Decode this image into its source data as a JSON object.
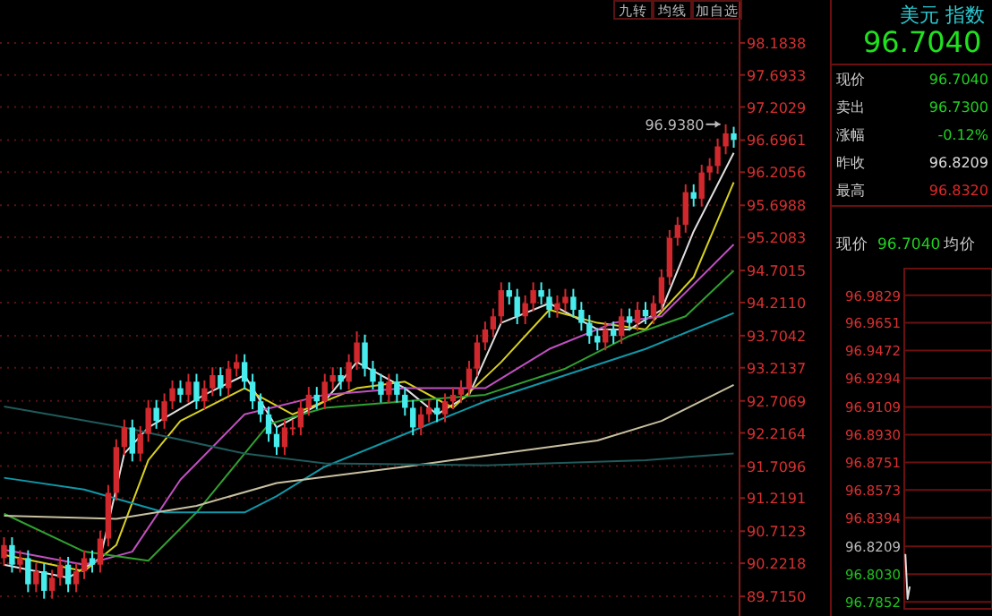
{
  "chart_data": [
    {
      "type": "candlestick",
      "categories": [
        null,
        null,
        null,
        null,
        null,
        null,
        null,
        null,
        null,
        null,
        null,
        null,
        null,
        null,
        null,
        null,
        null,
        null,
        null,
        null,
        null,
        null,
        null,
        null,
        null,
        null,
        null,
        null,
        null,
        null,
        null,
        null,
        null,
        null,
        null,
        null,
        null,
        null,
        null,
        null,
        null,
        null,
        null,
        null,
        null,
        null,
        null,
        null,
        null,
        null,
        null,
        null,
        null,
        null,
        null,
        null,
        null,
        null,
        null,
        null,
        null,
        null,
        null,
        null,
        null,
        null,
        null,
        null,
        null,
        null,
        null,
        null,
        null,
        null,
        null,
        null,
        null,
        null,
        null,
        null,
        null,
        null,
        null,
        null,
        null,
        null,
        null,
        null,
        null,
        null,
        null,
        null
      ],
      "ohlc": [
        [
          90.3,
          90.62,
          90.18,
          90.5
        ],
        [
          90.5,
          90.62,
          90.08,
          90.2
        ],
        [
          90.2,
          90.42,
          90.08,
          90.3
        ],
        [
          90.3,
          90.42,
          89.78,
          89.9
        ],
        [
          89.9,
          90.22,
          89.78,
          90.1
        ],
        [
          90.1,
          90.22,
          89.68,
          89.8
        ],
        [
          89.8,
          90.12,
          89.68,
          90.0
        ],
        [
          90.0,
          90.32,
          89.88,
          90.2
        ],
        [
          90.2,
          90.32,
          89.78,
          89.9
        ],
        [
          89.9,
          90.22,
          89.78,
          90.1
        ],
        [
          90.1,
          90.42,
          89.98,
          90.3
        ],
        [
          90.3,
          90.42,
          90.08,
          90.2
        ],
        [
          90.2,
          90.72,
          90.08,
          90.6
        ],
        [
          90.6,
          91.42,
          90.48,
          91.3
        ],
        [
          91.3,
          92.12,
          91.18,
          92.0
        ],
        [
          92.0,
          92.42,
          91.88,
          92.3
        ],
        [
          92.3,
          92.42,
          91.78,
          91.9
        ],
        [
          91.9,
          92.32,
          91.78,
          92.2
        ],
        [
          92.2,
          92.72,
          92.08,
          92.6
        ],
        [
          92.6,
          92.72,
          92.28,
          92.4
        ],
        [
          92.4,
          92.82,
          92.28,
          92.7
        ],
        [
          92.7,
          93.02,
          92.58,
          92.9
        ],
        [
          92.9,
          93.02,
          92.68,
          92.8
        ],
        [
          92.8,
          93.12,
          92.68,
          93.0
        ],
        [
          93.0,
          93.12,
          92.58,
          92.7
        ],
        [
          92.7,
          93.02,
          92.58,
          92.9
        ],
        [
          92.9,
          93.22,
          92.78,
          93.1
        ],
        [
          93.1,
          93.22,
          92.78,
          92.9
        ],
        [
          92.9,
          93.32,
          92.78,
          93.2
        ],
        [
          93.2,
          93.42,
          93.08,
          93.3
        ],
        [
          93.3,
          93.42,
          92.88,
          93.0
        ],
        [
          93.0,
          93.12,
          92.58,
          92.7
        ],
        [
          92.7,
          92.82,
          92.38,
          92.5
        ],
        [
          92.5,
          92.62,
          92.08,
          92.2
        ],
        [
          92.2,
          92.32,
          91.88,
          92.0
        ],
        [
          92.0,
          92.42,
          91.88,
          92.3
        ],
        [
          92.3,
          92.42,
          92.18,
          92.3
        ],
        [
          92.3,
          92.72,
          92.18,
          92.6
        ],
        [
          92.6,
          92.92,
          92.48,
          92.8
        ],
        [
          92.8,
          92.92,
          92.58,
          92.7
        ],
        [
          92.7,
          93.12,
          92.58,
          93.0
        ],
        [
          93.0,
          93.22,
          92.88,
          93.1
        ],
        [
          93.1,
          93.22,
          92.88,
          93.0
        ],
        [
          93.0,
          93.42,
          92.88,
          93.3
        ],
        [
          93.3,
          93.77,
          93.18,
          93.6
        ],
        [
          93.6,
          93.72,
          93.08,
          93.2
        ],
        [
          93.2,
          93.32,
          92.88,
          93.0
        ],
        [
          93.0,
          93.12,
          92.68,
          92.8
        ],
        [
          92.8,
          93.12,
          92.68,
          93.0
        ],
        [
          93.0,
          93.12,
          92.68,
          92.8
        ],
        [
          92.8,
          92.92,
          92.48,
          92.6
        ],
        [
          92.6,
          92.72,
          92.18,
          92.3
        ],
        [
          92.3,
          92.62,
          92.18,
          92.5
        ],
        [
          92.5,
          92.72,
          92.38,
          92.6
        ],
        [
          92.6,
          92.72,
          92.38,
          92.5
        ],
        [
          92.5,
          92.82,
          92.38,
          92.7
        ],
        [
          92.7,
          92.92,
          92.58,
          92.8
        ],
        [
          92.8,
          93.02,
          92.68,
          92.9
        ],
        [
          92.9,
          93.32,
          92.78,
          93.2
        ],
        [
          93.2,
          93.72,
          93.08,
          93.6
        ],
        [
          93.6,
          93.92,
          93.48,
          93.8
        ],
        [
          93.8,
          94.12,
          93.68,
          94.0
        ],
        [
          94.0,
          94.52,
          93.88,
          94.4
        ],
        [
          94.4,
          94.52,
          94.18,
          94.3
        ],
        [
          94.3,
          94.42,
          93.88,
          94.0
        ],
        [
          94.0,
          94.32,
          93.88,
          94.2
        ],
        [
          94.2,
          94.52,
          94.08,
          94.4
        ],
        [
          94.4,
          94.52,
          94.18,
          94.3
        ],
        [
          94.3,
          94.42,
          93.98,
          94.1
        ],
        [
          94.1,
          94.32,
          93.98,
          94.2
        ],
        [
          94.2,
          94.42,
          94.08,
          94.3
        ],
        [
          94.3,
          94.42,
          93.98,
          94.1
        ],
        [
          94.1,
          94.22,
          93.78,
          93.9
        ],
        [
          93.9,
          94.02,
          93.58,
          93.7
        ],
        [
          93.7,
          93.82,
          93.48,
          93.6
        ],
        [
          93.6,
          93.92,
          93.48,
          93.8
        ],
        [
          93.8,
          93.92,
          93.58,
          93.7
        ],
        [
          93.7,
          94.12,
          93.58,
          94.0
        ],
        [
          94.0,
          94.12,
          93.78,
          93.9
        ],
        [
          93.9,
          94.22,
          93.78,
          94.1
        ],
        [
          94.1,
          94.22,
          93.88,
          94.0
        ],
        [
          94.0,
          94.32,
          93.88,
          94.2
        ],
        [
          94.2,
          94.72,
          94.08,
          94.6
        ],
        [
          94.6,
          95.32,
          94.48,
          95.2
        ],
        [
          95.2,
          95.52,
          95.08,
          95.4
        ],
        [
          95.4,
          96.02,
          95.28,
          95.9
        ],
        [
          95.9,
          96.02,
          95.68,
          95.8
        ],
        [
          95.8,
          96.32,
          95.68,
          96.2
        ],
        [
          96.2,
          96.42,
          96.08,
          96.3
        ],
        [
          96.3,
          96.72,
          96.18,
          96.6
        ],
        [
          96.6,
          96.938,
          96.48,
          96.8
        ],
        [
          96.8,
          96.9,
          96.58,
          96.7
        ]
      ],
      "series": [
        {
          "type": "line",
          "color": "#e0e0e0",
          "values": [
            90.2,
            null,
            null,
            null,
            null,
            null,
            null,
            null,
            90.0,
            null,
            null,
            null,
            90.3,
            null,
            null,
            91.9,
            null,
            null,
            92.3,
            null,
            null,
            null,
            null,
            null,
            null,
            92.8,
            null,
            null,
            null,
            null,
            93.1,
            null,
            null,
            null,
            92.3,
            null,
            null,
            null,
            null,
            null,
            92.7,
            null,
            null,
            null,
            93.3,
            null,
            null,
            null,
            null,
            null,
            92.9,
            null,
            null,
            null,
            92.5,
            null,
            null,
            null,
            92.8,
            null,
            null,
            null,
            93.9,
            null,
            null,
            null,
            null,
            null,
            94.2,
            null,
            null,
            null,
            null,
            null,
            93.8,
            null,
            null,
            null,
            93.8,
            null,
            null,
            null,
            94.1,
            null,
            null,
            null,
            95.3,
            null,
            null,
            null,
            null,
            96.5
          ]
        },
        {
          "type": "line",
          "color": "#d8d020",
          "values": [
            90.35,
            null,
            null,
            null,
            null,
            null,
            null,
            null,
            null,
            null,
            90.1,
            null,
            null,
            null,
            90.5,
            null,
            null,
            null,
            91.8,
            null,
            null,
            null,
            92.4,
            null,
            null,
            null,
            null,
            null,
            null,
            null,
            92.9,
            null,
            null,
            null,
            null,
            null,
            92.5,
            null,
            null,
            null,
            null,
            null,
            null,
            null,
            92.9,
            null,
            null,
            null,
            null,
            null,
            93.0,
            null,
            null,
            null,
            null,
            null,
            92.6,
            null,
            null,
            null,
            null,
            null,
            93.3,
            null,
            null,
            null,
            null,
            null,
            94.1,
            null,
            null,
            null,
            null,
            null,
            93.9,
            null,
            null,
            null,
            null,
            null,
            93.8,
            null,
            null,
            null,
            null,
            null,
            94.6,
            null,
            null,
            null,
            null,
            96.05
          ]
        },
        {
          "type": "line",
          "color": "#c050c0",
          "values": [
            90.43,
            null,
            null,
            null,
            null,
            null,
            null,
            null,
            null,
            null,
            90.2,
            null,
            null,
            null,
            null,
            null,
            90.4,
            null,
            null,
            null,
            null,
            null,
            91.5,
            null,
            null,
            null,
            null,
            null,
            null,
            null,
            92.5,
            null,
            null,
            null,
            null,
            null,
            null,
            null,
            null,
            null,
            92.8,
            null,
            null,
            null,
            null,
            null,
            null,
            null,
            null,
            null,
            92.9,
            null,
            null,
            null,
            null,
            null,
            null,
            null,
            null,
            null,
            92.9,
            null,
            null,
            null,
            null,
            null,
            null,
            null,
            93.5,
            null,
            null,
            null,
            null,
            null,
            null,
            null,
            93.9,
            null,
            null,
            null,
            null,
            null,
            94.0,
            null,
            null,
            null,
            null,
            null,
            null,
            null,
            null,
            95.1
          ]
        },
        {
          "type": "line",
          "color": "#30a030",
          "values": [
            90.98,
            null,
            null,
            null,
            null,
            null,
            null,
            null,
            null,
            null,
            90.4,
            null,
            null,
            null,
            null,
            null,
            null,
            null,
            90.26,
            null,
            null,
            null,
            null,
            null,
            91.0,
            null,
            null,
            null,
            null,
            null,
            null,
            null,
            null,
            92.35,
            null,
            null,
            null,
            null,
            null,
            null,
            92.6,
            null,
            null,
            null,
            null,
            null,
            null,
            null,
            null,
            null,
            92.7,
            null,
            null,
            null,
            null,
            null,
            null,
            null,
            null,
            null,
            92.8,
            null,
            null,
            null,
            null,
            null,
            null,
            null,
            null,
            null,
            93.2,
            null,
            null,
            null,
            null,
            null,
            null,
            null,
            93.7,
            null,
            null,
            null,
            null,
            null,
            null,
            94.0,
            null,
            null,
            null,
            null,
            null,
            94.7
          ]
        },
        {
          "type": "line",
          "color": "#1098a8",
          "values": [
            91.53,
            null,
            null,
            null,
            null,
            null,
            null,
            null,
            null,
            null,
            91.35,
            null,
            null,
            null,
            null,
            null,
            null,
            null,
            null,
            null,
            91.0,
            null,
            null,
            null,
            null,
            null,
            null,
            null,
            null,
            null,
            91.0,
            null,
            null,
            null,
            91.25,
            null,
            null,
            null,
            null,
            null,
            91.7,
            null,
            null,
            null,
            null,
            null,
            null,
            null,
            null,
            null,
            92.2,
            null,
            null,
            null,
            null,
            null,
            null,
            null,
            null,
            null,
            92.7,
            null,
            null,
            null,
            null,
            null,
            null,
            null,
            null,
            null,
            93.1,
            null,
            null,
            null,
            null,
            null,
            null,
            null,
            null,
            null,
            93.5,
            null,
            null,
            null,
            null,
            null,
            null,
            null,
            null,
            null,
            null,
            94.05
          ]
        },
        {
          "type": "line",
          "color": "#c8c0a0",
          "values": [
            90.95,
            null,
            null,
            null,
            null,
            null,
            null,
            null,
            null,
            null,
            null,
            null,
            null,
            null,
            90.9,
            null,
            null,
            null,
            null,
            null,
            null,
            null,
            null,
            null,
            91.1,
            null,
            null,
            null,
            null,
            null,
            null,
            null,
            null,
            null,
            91.45,
            null,
            null,
            null,
            null,
            null,
            null,
            null,
            null,
            null,
            null,
            null,
            null,
            null,
            null,
            null,
            91.7,
            null,
            null,
            null,
            null,
            null,
            null,
            null,
            null,
            null,
            null,
            null,
            91.9,
            null,
            null,
            null,
            null,
            null,
            null,
            null,
            null,
            null,
            null,
            null,
            92.1,
            null,
            null,
            null,
            null,
            null,
            null,
            null,
            92.4,
            null,
            null,
            null,
            null,
            null,
            null,
            null,
            null,
            92.95
          ]
        },
        {
          "type": "line",
          "color": "#205a5a",
          "values": [
            92.62,
            null,
            null,
            null,
            null,
            null,
            null,
            null,
            null,
            null,
            null,
            null,
            null,
            null,
            null,
            92.3,
            null,
            null,
            null,
            null,
            null,
            null,
            null,
            null,
            null,
            null,
            null,
            null,
            null,
            null,
            91.9,
            null,
            null,
            null,
            null,
            null,
            null,
            null,
            null,
            null,
            91.75,
            null,
            null,
            null,
            null,
            null,
            null,
            null,
            null,
            null,
            null,
            null,
            null,
            null,
            null,
            null,
            null,
            null,
            null,
            null,
            91.72,
            null,
            null,
            null,
            null,
            null,
            null,
            null,
            null,
            null,
            null,
            null,
            null,
            null,
            null,
            null,
            null,
            null,
            null,
            null,
            91.8,
            null,
            null,
            null,
            null,
            null,
            null,
            null,
            null,
            null,
            null,
            91.9
          ]
        }
      ],
      "ylim": [
        89.415,
        98.84
      ],
      "yticks": [
        98.1838,
        97.6933,
        97.2029,
        96.6961,
        96.2056,
        95.6988,
        95.2083,
        94.7015,
        {
          "value": 94.211,
          "label": "94.2110"
        },
        93.7042,
        93.2137,
        92.7069,
        92.2164,
        91.7096,
        91.2191,
        90.7123,
        90.2218,
        {
          "value": 89.715,
          "label": "89.7150"
        }
      ],
      "grid": "y",
      "tick_labels": "y",
      "annotations": [
        "96.9380"
      ]
    },
    {
      "type": "other",
      "annotations": [
        "九转",
        "均线",
        "加自选",
        "美元 指数",
        "96.7040",
        "现价",
        "96.7040",
        "卖出",
        "96.7300",
        "涨幅",
        "-0.12%",
        "昨收",
        "96.8209",
        "最高",
        "96.8320",
        "现价",
        "96.7040",
        "均价"
      ]
    },
    {
      "type": "line",
      "categories": [
        null,
        null,
        null,
        null,
        null,
        null,
        null,
        null,
        null,
        null,
        null,
        null,
        null,
        null,
        null,
        null,
        null,
        null,
        null,
        null,
        null,
        null,
        null,
        null,
        null,
        null,
        null,
        null,
        null,
        null,
        null,
        null,
        null,
        null,
        null,
        null,
        null,
        null,
        null,
        null
      ],
      "values": [
        96.816,
        96.787,
        96.795,
        null,
        null,
        null,
        null,
        null,
        null,
        null,
        null,
        null,
        null,
        null,
        null,
        null,
        null,
        null,
        null,
        null,
        null,
        null,
        null,
        null,
        null,
        null,
        null,
        null,
        null,
        null,
        null,
        null,
        null,
        null,
        null,
        null,
        null,
        null,
        null,
        null
      ],
      "color": "#dddddd",
      "ylim": [
        96.783,
        97.0
      ],
      "yticks": [
        96.9829,
        96.9651,
        96.9472,
        96.9294,
        96.9109,
        {
          "value": 96.893,
          "label": "96.8930"
        },
        96.8751,
        96.8573,
        96.8394,
        96.8209,
        {
          "value": 96.803,
          "label": "96.8030"
        },
        96.7852
      ],
      "grid": "y",
      "tick_labels": "y"
    }
  ]
}
